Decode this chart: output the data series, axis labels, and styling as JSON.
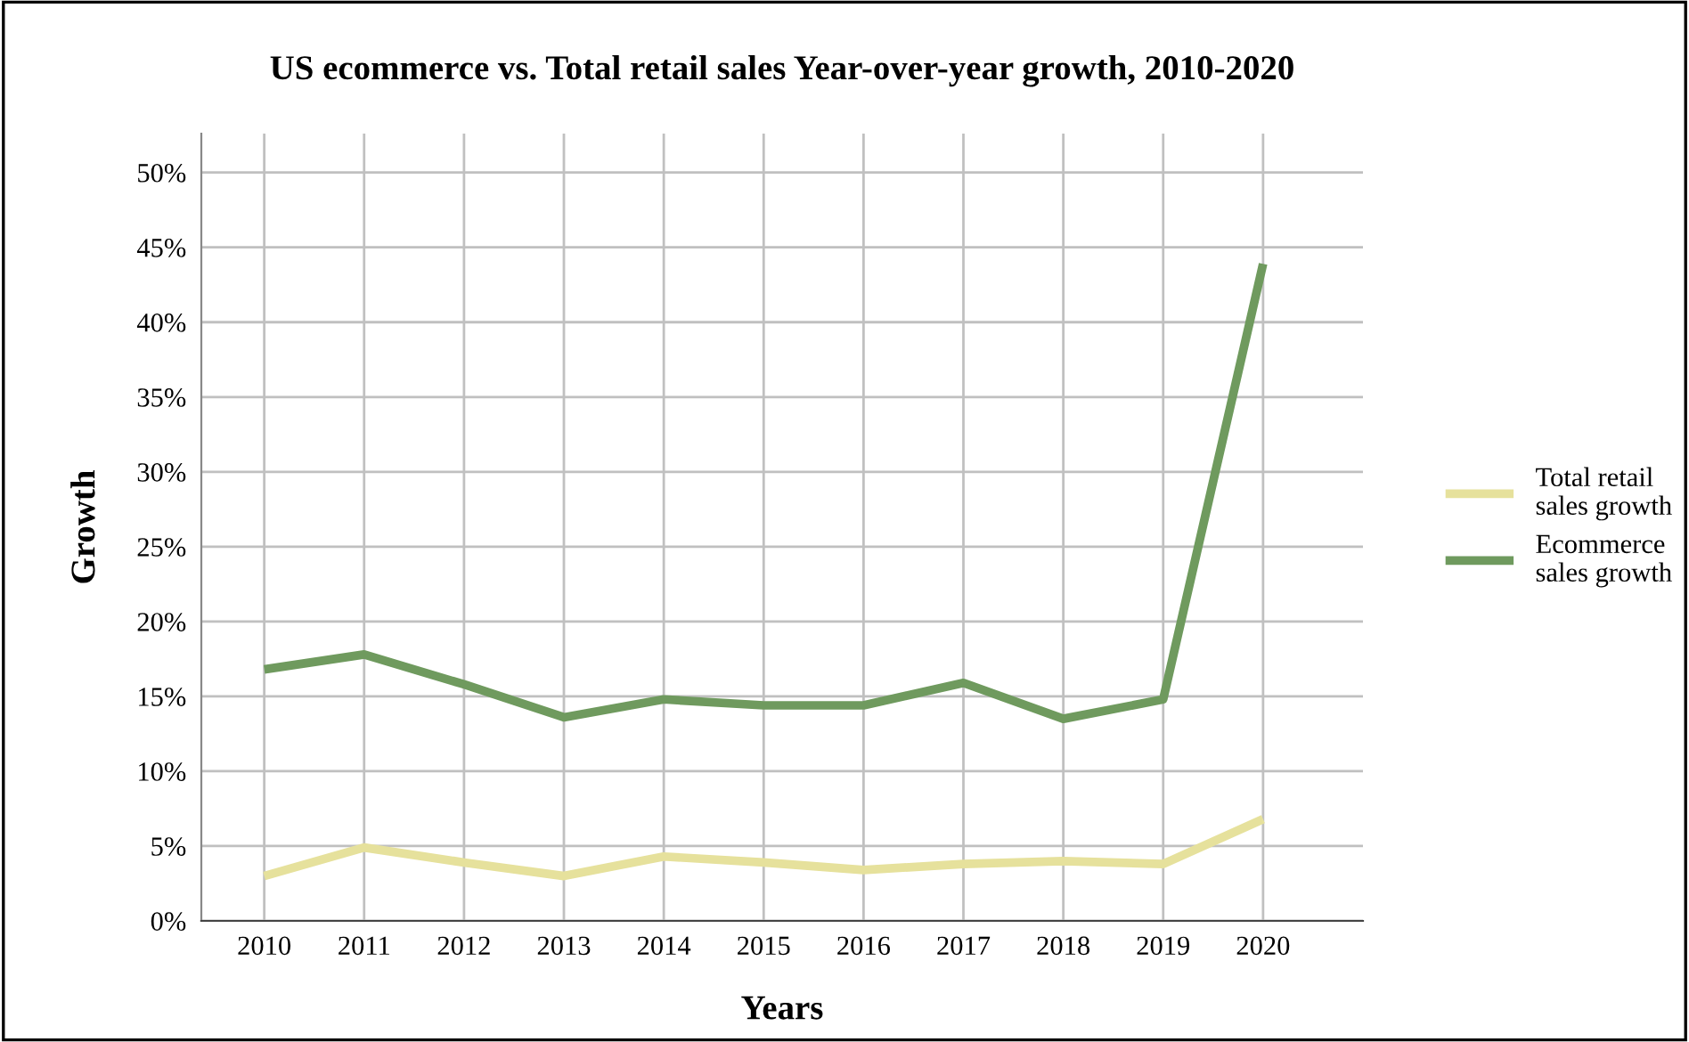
{
  "chart_data": {
    "type": "line",
    "title": "US ecommerce vs. Total retail sales Year-over-year growth, 2010-2020",
    "xlabel": "Years",
    "ylabel": "Growth",
    "categories": [
      "2010",
      "2011",
      "2012",
      "2013",
      "2014",
      "2015",
      "2016",
      "2017",
      "2018",
      "2019",
      "2020"
    ],
    "series": [
      {
        "name": "Total retail\nsales growth",
        "color": "#e6e19c",
        "values": [
          3.0,
          4.9,
          3.9,
          3.0,
          4.3,
          3.9,
          3.4,
          3.8,
          4.0,
          3.8,
          6.8
        ]
      },
      {
        "name": "Ecommerce\nsales growth",
        "color": "#6f9a5e",
        "values": [
          16.8,
          17.8,
          15.8,
          13.6,
          14.8,
          14.4,
          14.4,
          15.9,
          13.5,
          14.8,
          43.9
        ]
      }
    ],
    "ylim": [
      0,
      52.6
    ],
    "yticks": [
      {
        "value": 0,
        "label": "0%"
      },
      {
        "value": 5,
        "label": "5%"
      },
      {
        "value": 10,
        "label": "10%"
      },
      {
        "value": 15,
        "label": "15%"
      },
      {
        "value": 20,
        "label": "20%"
      },
      {
        "value": 25,
        "label": "25%"
      },
      {
        "value": 30,
        "label": "30%"
      },
      {
        "value": 35,
        "label": "35%"
      },
      {
        "value": 40,
        "label": "40%"
      },
      {
        "value": 45,
        "label": "45%"
      },
      {
        "value": 50,
        "label": "50%"
      }
    ],
    "grid": true,
    "legend": "right",
    "marker": "none",
    "line_style": "solid"
  }
}
